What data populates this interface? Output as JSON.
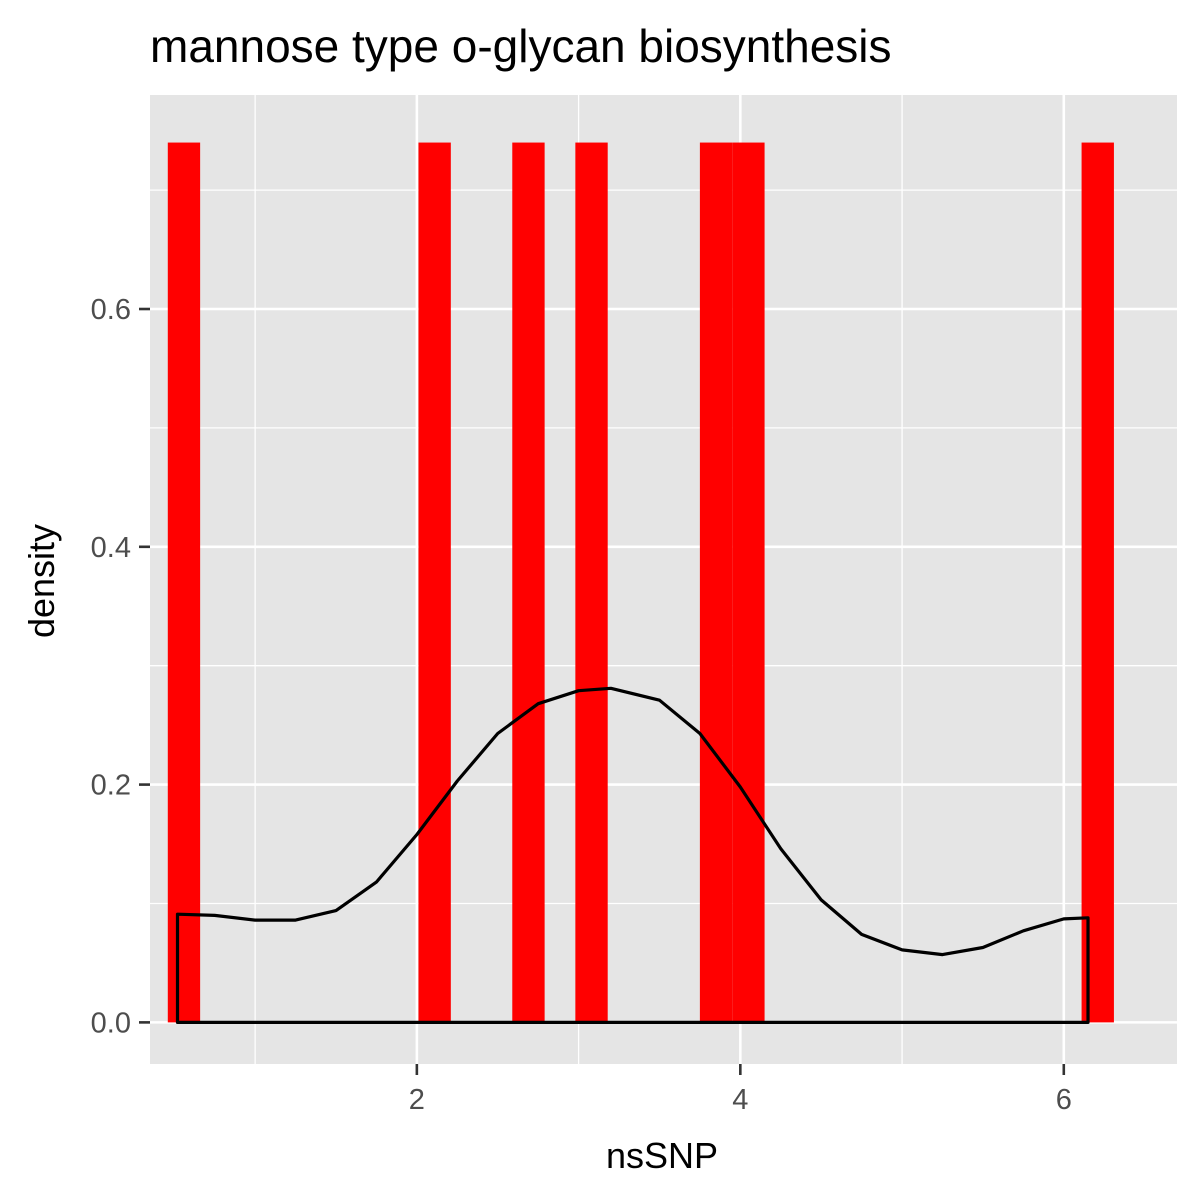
{
  "chart_data": {
    "type": "bar",
    "title": "mannose type o-glycan biosynthesis",
    "xlabel": "nsSNP",
    "ylabel": "density",
    "xlim": [
      0.35,
      6.7
    ],
    "ylim": [
      -0.035,
      0.78
    ],
    "x_ticks": [
      2,
      4,
      6
    ],
    "x_tick_labels": [
      "2",
      "4",
      "6"
    ],
    "x_minor_gridlines": [
      1,
      3,
      5
    ],
    "y_ticks": [
      0.0,
      0.2,
      0.4,
      0.6
    ],
    "y_tick_labels": [
      "0.0",
      "0.2",
      "0.4",
      "0.6"
    ],
    "y_minor_gridlines": [
      0.1,
      0.3,
      0.5,
      0.7
    ],
    "grid": true,
    "histogram_bin_width": 0.2,
    "histogram_bars": [
      {
        "x_start": 0.46,
        "x_end": 0.66,
        "density": 0.74
      },
      {
        "x_start": 2.01,
        "x_end": 2.21,
        "density": 0.74
      },
      {
        "x_start": 2.59,
        "x_end": 2.79,
        "density": 0.74
      },
      {
        "x_start": 2.98,
        "x_end": 3.18,
        "density": 0.74
      },
      {
        "x_start": 3.75,
        "x_end": 3.95,
        "density": 0.74
      },
      {
        "x_start": 3.95,
        "x_end": 4.15,
        "density": 0.74
      },
      {
        "x_start": 6.11,
        "x_end": 6.31,
        "density": 0.74
      }
    ],
    "bar_color": "#FF0000",
    "density_curve": {
      "color": "#000000",
      "x": [
        0.52,
        0.75,
        1.0,
        1.25,
        1.5,
        1.75,
        2.0,
        2.25,
        2.5,
        2.75,
        3.0,
        3.2,
        3.5,
        3.75,
        4.0,
        4.25,
        4.5,
        4.75,
        5.0,
        5.25,
        5.5,
        5.75,
        6.0,
        6.15
      ],
      "y": [
        0.091,
        0.09,
        0.086,
        0.086,
        0.094,
        0.118,
        0.158,
        0.203,
        0.243,
        0.268,
        0.279,
        0.281,
        0.271,
        0.243,
        0.198,
        0.146,
        0.103,
        0.074,
        0.061,
        0.057,
        0.063,
        0.077,
        0.087,
        0.088
      ]
    }
  }
}
